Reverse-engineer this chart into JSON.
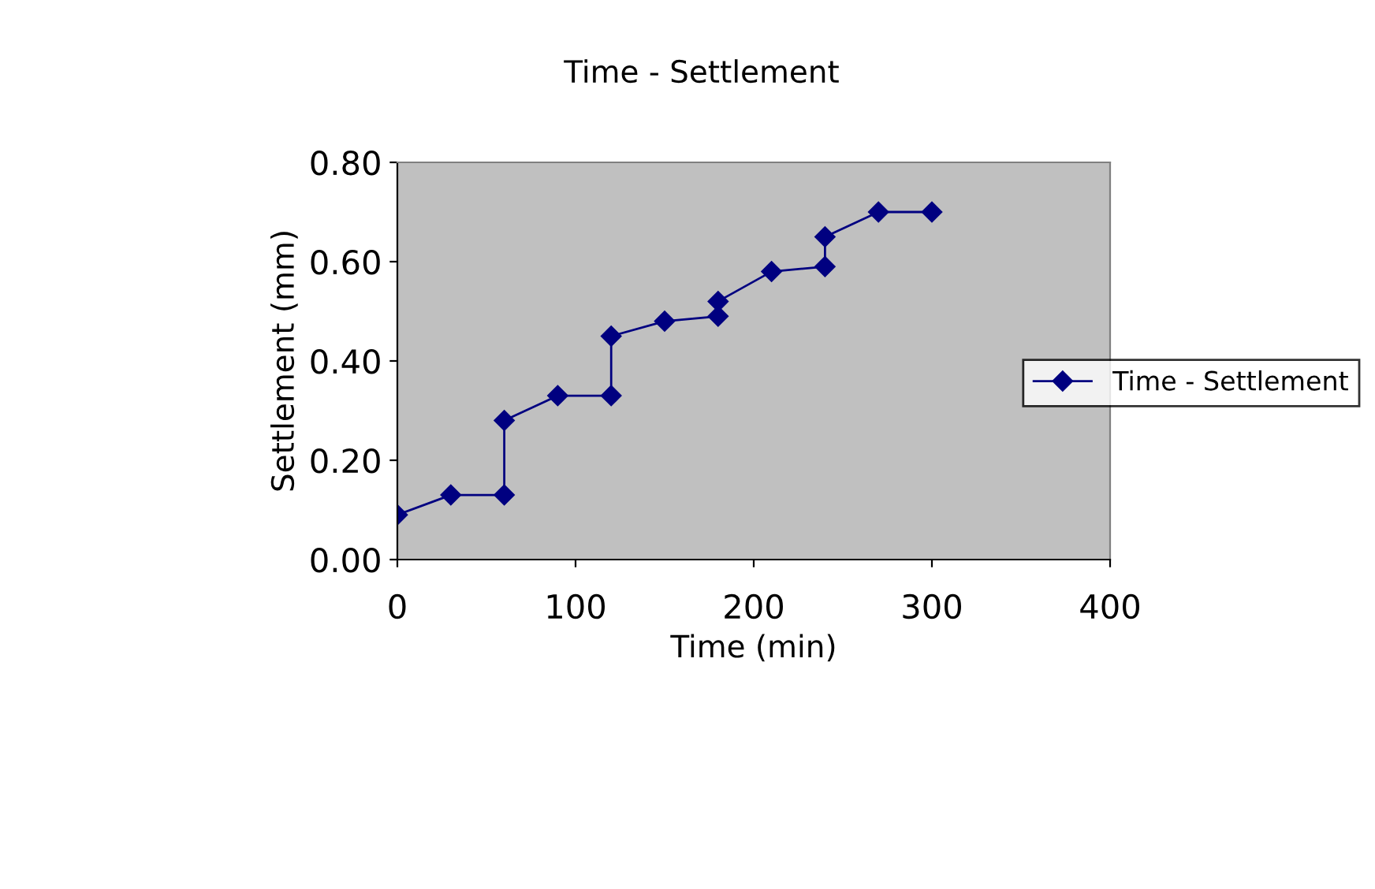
{
  "chart_data": {
    "type": "line",
    "title": "Time - Settlement",
    "xlabel": "Time (min)",
    "ylabel": "Settlement (mm)",
    "series": [
      {
        "name": "Time - Settlement",
        "color": "#000080",
        "x": [
          0,
          30,
          60,
          60,
          90,
          120,
          120,
          150,
          180,
          180,
          210,
          240,
          240,
          270,
          300
        ],
        "values": [
          0.09,
          0.13,
          0.13,
          0.28,
          0.33,
          0.33,
          0.45,
          0.48,
          0.49,
          0.52,
          0.58,
          0.59,
          0.65,
          0.7,
          0.7
        ]
      }
    ],
    "xlim": [
      0,
      400
    ],
    "xticks": [
      0,
      100,
      200,
      300,
      400
    ],
    "ylim": [
      0,
      0.8
    ],
    "yticks": [
      {
        "value": 0,
        "label": "0.00"
      },
      {
        "value": 0.2,
        "label": "0.20"
      },
      {
        "value": 0.4,
        "label": "0.40"
      },
      {
        "value": 0.6,
        "label": "0.60"
      },
      {
        "value": 0.8,
        "label": "0.80"
      }
    ],
    "grid": false,
    "legend": "right",
    "marker": "diamond",
    "line_style": "solid"
  }
}
